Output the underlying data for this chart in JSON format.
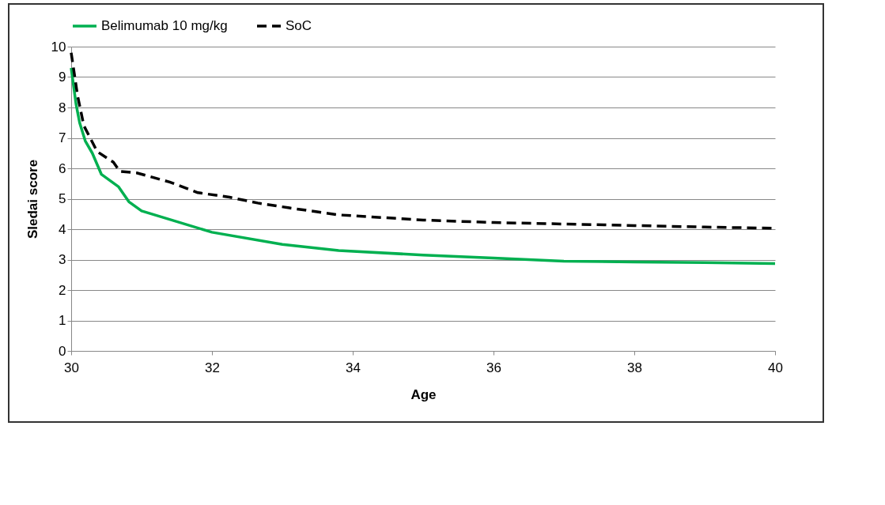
{
  "chart_data": {
    "type": "line",
    "xlabel": "Age",
    "ylabel": "Sledai score",
    "xlim": [
      30,
      40
    ],
    "xticks": [
      30,
      32,
      34,
      36,
      38,
      40
    ],
    "ylim": [
      0,
      10
    ],
    "yticks": [
      0,
      1,
      2,
      3,
      4,
      5,
      6,
      7,
      8,
      9,
      10
    ],
    "grid": "y",
    "legend": "top",
    "series": [
      {
        "name": "Belimumab 10 mg/kg",
        "color": "#00b050",
        "line_style": "solid",
        "x": [
          30,
          30.07,
          30.12,
          30.2,
          30.3,
          30.43,
          30.67,
          30.82,
          31,
          32,
          33,
          33.8,
          35,
          36,
          37,
          38,
          39,
          40
        ],
        "values": [
          9.3,
          8.1,
          7.5,
          6.9,
          6.5,
          5.8,
          5.4,
          4.9,
          4.6,
          3.9,
          3.5,
          3.3,
          3.15,
          3.05,
          2.95,
          2.92,
          2.9,
          2.87
        ]
      },
      {
        "name": "SoC",
        "color": "#000000",
        "line_style": "dashed",
        "x": [
          30,
          30.09,
          30.18,
          30.37,
          30.6,
          30.69,
          30.93,
          31.4,
          31.8,
          32.25,
          32.65,
          33.1,
          33.8,
          35,
          36,
          37,
          38,
          39,
          40
        ],
        "values": [
          9.8,
          8.4,
          7.4,
          6.55,
          6.2,
          5.9,
          5.85,
          5.55,
          5.2,
          5.05,
          4.86,
          4.7,
          4.47,
          4.3,
          4.22,
          4.17,
          4.12,
          4.07,
          4.03
        ]
      }
    ]
  }
}
